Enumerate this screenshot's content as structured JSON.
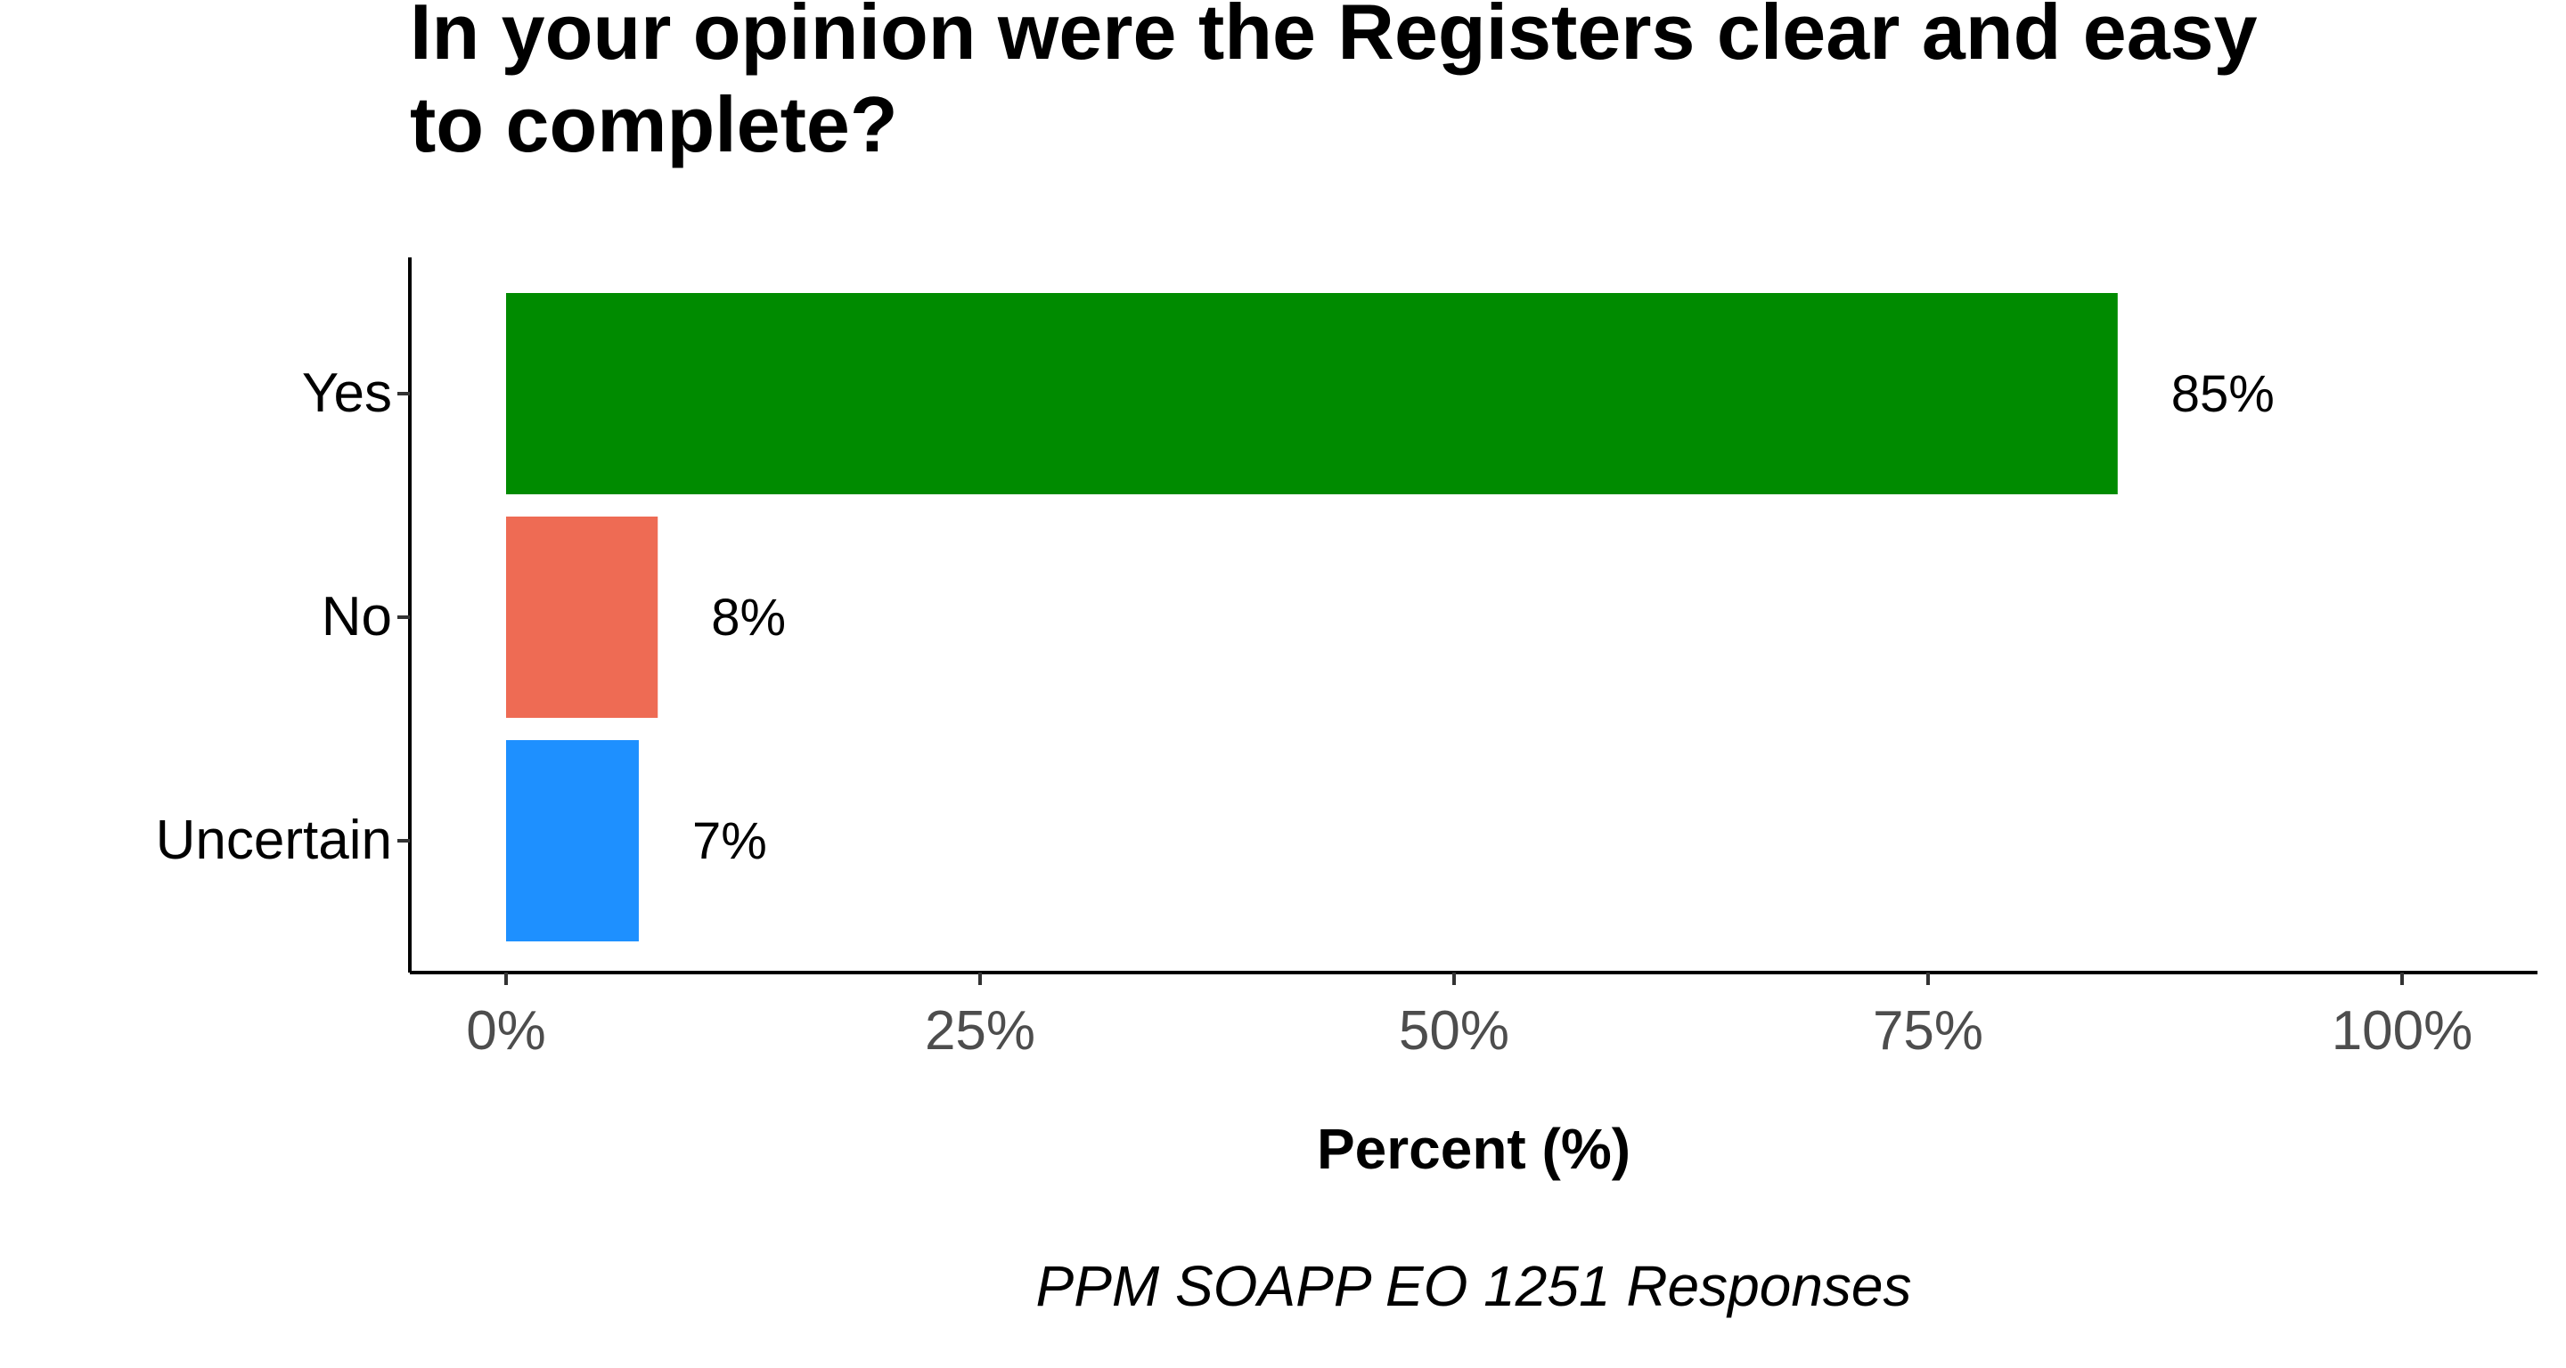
{
  "chart_data": {
    "type": "bar",
    "orientation": "horizontal",
    "title_lines": [
      "In your opinion were the Registers clear and easy",
      "to complete?"
    ],
    "categories": [
      "Yes",
      "No",
      "Uncertain"
    ],
    "values": [
      85,
      8,
      7
    ],
    "value_labels": [
      "85%",
      "8%",
      "7%"
    ],
    "colors": [
      "#008b00",
      "#ee6b54",
      "#1e90ff"
    ],
    "xlabel": "Percent (%)",
    "ylabel": "",
    "xlim": [
      0,
      100
    ],
    "xticks": [
      0,
      25,
      50,
      75,
      100
    ],
    "xtick_labels": [
      "0%",
      "25%",
      "50%",
      "75%",
      "100%"
    ],
    "caption": "PPM SOAPP EO 1251 Responses",
    "grid": false,
    "legend": "none"
  }
}
